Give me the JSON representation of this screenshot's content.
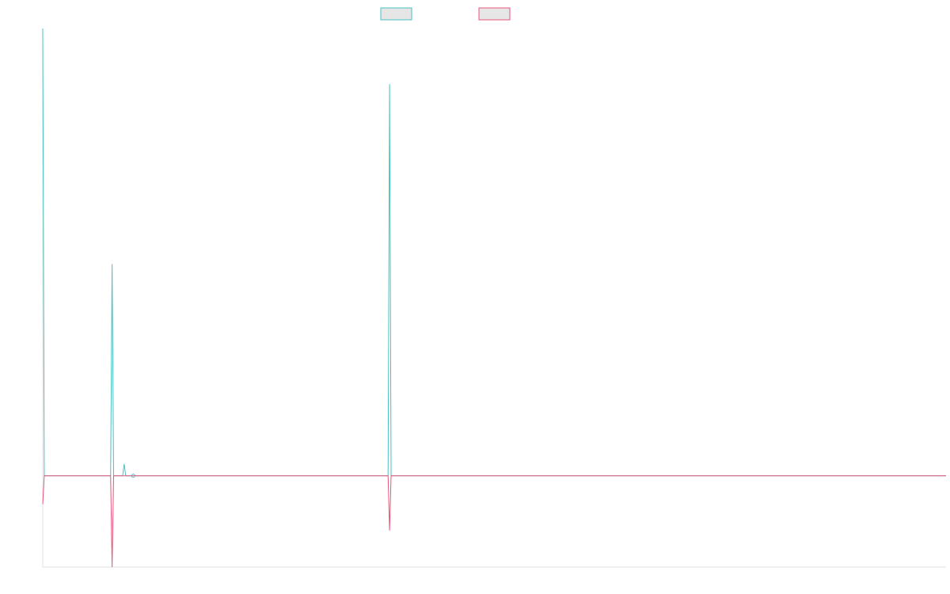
{
  "chart_data": {
    "type": "line",
    "x": [
      0,
      1,
      2,
      3,
      4,
      5,
      6,
      7,
      8,
      9,
      10,
      11,
      12,
      13,
      14,
      15,
      16,
      17,
      18,
      19,
      20,
      21,
      22,
      23,
      24,
      25,
      26,
      27,
      28,
      29,
      30,
      31,
      32,
      33,
      34,
      35,
      36,
      37,
      38,
      39,
      40,
      41,
      42,
      43,
      44,
      45,
      46,
      47,
      48,
      49,
      50,
      51,
      52,
      53,
      54,
      55,
      56,
      57,
      58,
      59,
      60,
      61,
      62,
      63,
      64,
      65,
      66,
      67,
      68,
      69,
      70,
      71,
      72,
      73,
      74,
      75,
      76,
      77,
      78,
      79,
      80,
      81,
      82,
      83,
      84,
      85,
      86,
      87,
      88,
      89,
      90,
      91,
      92,
      93,
      94,
      95,
      96,
      97,
      98,
      99,
      100,
      101,
      102,
      103,
      104,
      105,
      106,
      107,
      108,
      109,
      110,
      111,
      112,
      113,
      114,
      115,
      116,
      117,
      118,
      119,
      120,
      121,
      122,
      123,
      124,
      125,
      126,
      127,
      128,
      129,
      130,
      131,
      132,
      133,
      134,
      135,
      136,
      137,
      138,
      139,
      140,
      141,
      142,
      143,
      144,
      145,
      146,
      147,
      148,
      149,
      150,
      151,
      152,
      153,
      154,
      155,
      156,
      157,
      158,
      159,
      160,
      161,
      162,
      163,
      164,
      165,
      166,
      167,
      168,
      169,
      170,
      171,
      172,
      173,
      174,
      175,
      176,
      177,
      178,
      179,
      180,
      181,
      182,
      183,
      184,
      185,
      186,
      187,
      188,
      189,
      190,
      191,
      192,
      193,
      194,
      195,
      196,
      197,
      198,
      199,
      200,
      201,
      202,
      203,
      204,
      205,
      206,
      207,
      208,
      209,
      210,
      211,
      212,
      213,
      214,
      215,
      216,
      217,
      218,
      219,
      220,
      221,
      222,
      223,
      224,
      225,
      226,
      227,
      228,
      229,
      230,
      231,
      232,
      233,
      234,
      235,
      236,
      237,
      238,
      239,
      240,
      241,
      242,
      243,
      244,
      245,
      246,
      247,
      248,
      249,
      250,
      251,
      252,
      253,
      254,
      255,
      256,
      257,
      258,
      259,
      260,
      261,
      262,
      263,
      264,
      265,
      266,
      267,
      268,
      269,
      270,
      271,
      272,
      273,
      274,
      275,
      276,
      277,
      278,
      279,
      280,
      281,
      282,
      283,
      284,
      285,
      286,
      287,
      288,
      289,
      290,
      291,
      292,
      293,
      294,
      295,
      296,
      297,
      298,
      299,
      300,
      301,
      302,
      303,
      304,
      305,
      306,
      307,
      308,
      309,
      310,
      311,
      312,
      313,
      314,
      315,
      316,
      317,
      318,
      319,
      320,
      321,
      322,
      323,
      324,
      325,
      326,
      327,
      328,
      329,
      330,
      331,
      332,
      333,
      334,
      335,
      336,
      337,
      338,
      339,
      340,
      341,
      342,
      343,
      344,
      345,
      346,
      347,
      348,
      349,
      350,
      351,
      352,
      353,
      354,
      355,
      356,
      357,
      358,
      359,
      360,
      361,
      362,
      363,
      364,
      365,
      366,
      367,
      368,
      369,
      370,
      371,
      372,
      373,
      374,
      375,
      376,
      377,
      378,
      379,
      380,
      381,
      382,
      383,
      384,
      385,
      386,
      387,
      388,
      389,
      390,
      391,
      392,
      393,
      394,
      395,
      396,
      397,
      398,
      399,
      400,
      401,
      402,
      403,
      404,
      405,
      406,
      407,
      408,
      409,
      410,
      411,
      412,
      413,
      414,
      415,
      416,
      417,
      418,
      419,
      420,
      421,
      422,
      423,
      424,
      425,
      426,
      427,
      428,
      429,
      430,
      431,
      432,
      433,
      434,
      435,
      436,
      437,
      438,
      439,
      440,
      441,
      442,
      443,
      444,
      445,
      446,
      447,
      448,
      449,
      450,
      451,
      452,
      453,
      454,
      455,
      456,
      457,
      458,
      459,
      460,
      461,
      462,
      463,
      464,
      465,
      466,
      467,
      468,
      469,
      470,
      471,
      472,
      473,
      474,
      475,
      476,
      477,
      478,
      479,
      480,
      481,
      482,
      483,
      484,
      485,
      486,
      487,
      488,
      489,
      490,
      491,
      492,
      493,
      494,
      495,
      496,
      497,
      498,
      499,
      500,
      501,
      502,
      503,
      504,
      505,
      506,
      507,
      508,
      509,
      510,
      511,
      512,
      513,
      514,
      515,
      516,
      517,
      518,
      519,
      520,
      521,
      522,
      523,
      524,
      525,
      526,
      527,
      528,
      529,
      530,
      531,
      532,
      533,
      534,
      535,
      536,
      537,
      538,
      539,
      540,
      541,
      542,
      543,
      544,
      545,
      546,
      547,
      548,
      549,
      550,
      551,
      552,
      553,
      554,
      555,
      556,
      557,
      558,
      559,
      560,
      561,
      562,
      563,
      564,
      565,
      566,
      567,
      568,
      569,
      570,
      571,
      572,
      573,
      574,
      575,
      576,
      577,
      578,
      579,
      580,
      581,
      582,
      583,
      584,
      585,
      586,
      587,
      588,
      589,
      590,
      591,
      592,
      593,
      594,
      595,
      596,
      597,
      598,
      599
    ],
    "ylim": [
      -100,
      490
    ],
    "grid": false,
    "legend_position": "top-center",
    "series": [
      {
        "color": "#4bc0c0",
        "spikes": [
          [
            0,
            490
          ],
          [
            46,
            232
          ],
          [
            54,
            13
          ],
          [
            230,
            429
          ]
        ],
        "markers": [
          60
        ]
      },
      {
        "color": "#e8557a",
        "spikes": [
          [
            0,
            -31
          ],
          [
            46,
            -100
          ],
          [
            230,
            -60
          ]
        ],
        "markers": []
      }
    ]
  }
}
